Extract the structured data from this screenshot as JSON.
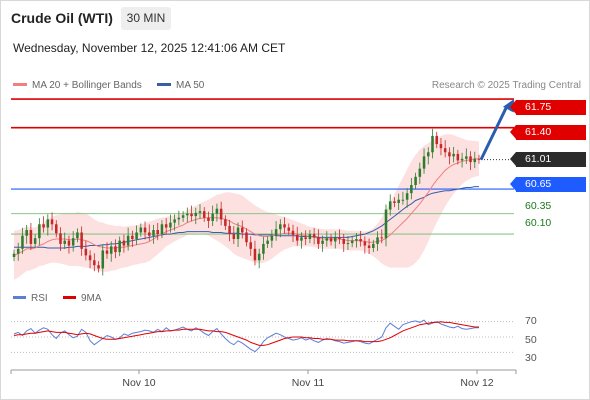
{
  "header": {
    "title": "Crude Oil (WTI)",
    "timeframe": "30 MIN",
    "datetime": "Wednesday, November 12, 2025 12:41:06 AM CET"
  },
  "legend": {
    "ma20": "MA 20 + Bollinger Bands",
    "ma50": "MA 50",
    "credit": "Research © 2025 Trading Central"
  },
  "colors": {
    "resistance": "#e10000",
    "pivot": "#1f5cff",
    "support": "#8bc48b",
    "ma20": "#f08080",
    "ma50": "#3a5da8",
    "band": "#fde0e0",
    "up_candle": "#2e7d2e",
    "down_candle": "#c62828",
    "rsi": "#5b7fd6",
    "rsi_ma": "#e10000"
  },
  "chart_data": [
    {
      "type": "candlestick",
      "title": "Crude Oil (WTI)",
      "timeframe": "30 MIN",
      "x_ticks": [
        "Nov 10",
        "Nov 11",
        "Nov 12"
      ],
      "levels": [
        {
          "value": 61.75,
          "label": "61.75",
          "kind": "resistance"
        },
        {
          "value": 61.4,
          "label": "61.40",
          "kind": "resistance"
        },
        {
          "value": 61.01,
          "label": "61.01",
          "kind": "last"
        },
        {
          "value": 60.65,
          "label": "60.65",
          "kind": "pivot"
        },
        {
          "value": 60.35,
          "label": "60.35",
          "kind": "support"
        },
        {
          "value": 60.1,
          "label": "60.10",
          "kind": "support"
        }
      ],
      "last_price": 61.01,
      "projection": {
        "from": 61.01,
        "to": 61.75,
        "direction": "up"
      },
      "close": [
        59.86,
        59.92,
        60.08,
        60.15,
        59.98,
        60.05,
        60.22,
        60.18,
        60.28,
        60.22,
        60.11,
        59.98,
        60.02,
        59.96,
        60.05,
        60.12,
        59.92,
        59.84,
        59.78,
        59.72,
        59.68,
        59.9,
        59.86,
        59.95,
        59.88,
        60.02,
        59.96,
        60.08,
        60.04,
        60.12,
        60.18,
        60.12,
        60.08,
        60.15,
        60.1,
        60.22,
        60.18,
        60.24,
        60.28,
        60.3,
        60.33,
        60.35,
        60.32,
        60.36,
        60.38,
        60.3,
        60.26,
        60.35,
        60.41,
        60.28,
        60.2,
        60.1,
        60.04,
        60.18,
        60.12,
        60.0,
        59.92,
        59.78,
        59.86,
        59.98,
        60.02,
        60.08,
        60.16,
        60.22,
        60.18,
        60.14,
        60.09,
        60.02,
        60.06,
        60.04,
        60.1,
        60.06,
        59.98,
        60.02,
        60.05,
        60.01,
        60.06,
        60.04,
        59.98,
        59.99,
        60.02,
        60.04,
        60.01,
        59.96,
        59.93,
        59.98,
        60.06,
        60.05,
        60.4,
        60.5,
        60.48,
        60.52,
        60.52,
        60.6,
        60.7,
        60.8,
        60.9,
        61.05,
        61.1,
        61.3,
        61.2,
        61.15,
        61.1,
        61.05,
        61.08,
        61.0,
        61.02,
        61.05,
        60.98,
        61.02,
        61.01
      ],
      "ma20": [
        59.84,
        59.86,
        59.89,
        59.92,
        59.92,
        59.93,
        59.96,
        59.98,
        60.01,
        60.03,
        60.04,
        60.04,
        60.04,
        60.03,
        60.03,
        60.04,
        60.03,
        60.02,
        60.0,
        59.97,
        59.95,
        59.94,
        59.93,
        59.93,
        59.93,
        59.94,
        59.94,
        59.95,
        59.96,
        59.97,
        59.98,
        59.99,
        60.01,
        60.04,
        60.07,
        60.1,
        60.13,
        60.15,
        60.17,
        60.19,
        60.21,
        60.24,
        60.26,
        60.28,
        60.29,
        60.3,
        60.3,
        60.3,
        60.3,
        60.29,
        60.28,
        60.26,
        60.23,
        60.21,
        60.19,
        60.16,
        60.13,
        60.1,
        60.08,
        60.07,
        60.07,
        60.08,
        60.09,
        60.1,
        60.11,
        60.11,
        60.11,
        60.1,
        60.09,
        60.08,
        60.07,
        60.06,
        60.05,
        60.04,
        60.04,
        60.04,
        60.04,
        60.04,
        60.03,
        60.02,
        60.02,
        60.02,
        60.02,
        60.01,
        60.0,
        60.0,
        60.01,
        60.02,
        60.05,
        60.09,
        60.14,
        60.19,
        60.24,
        60.29,
        60.35,
        60.41,
        60.47,
        60.54,
        60.61,
        60.69,
        60.76,
        60.82,
        60.88,
        60.92,
        60.95,
        60.97,
        60.99,
        61.0,
        61.01,
        61.02,
        61.02
      ],
      "ma50": [
        59.94,
        59.94,
        59.94,
        59.94,
        59.94,
        59.94,
        59.94,
        59.94,
        59.93,
        59.93,
        59.93,
        59.93,
        59.93,
        59.94,
        59.94,
        59.95,
        59.95,
        59.95,
        59.96,
        59.96,
        59.96,
        59.97,
        59.97,
        59.98,
        59.98,
        59.99,
        60.0,
        60.01,
        60.02,
        60.03,
        60.04,
        60.05,
        60.06,
        60.07,
        60.08,
        60.09,
        60.1,
        60.1,
        60.11,
        60.12,
        60.12,
        60.13,
        60.13,
        60.13,
        60.13,
        60.13,
        60.13,
        60.12,
        60.12,
        60.12,
        60.11,
        60.11,
        60.11,
        60.11,
        60.1,
        60.1,
        60.1,
        60.09,
        60.09,
        60.09,
        60.09,
        60.09,
        60.08,
        60.08,
        60.08,
        60.08,
        60.08,
        60.08,
        60.07,
        60.07,
        60.07,
        60.07,
        60.06,
        60.06,
        60.06,
        60.06,
        60.06,
        60.06,
        60.06,
        60.06,
        60.07,
        60.08,
        60.09,
        60.1,
        60.12,
        60.14,
        60.17,
        60.2,
        60.24,
        60.28,
        60.32,
        60.36,
        60.4,
        60.44,
        60.47,
        60.51,
        60.53,
        60.55,
        60.58,
        60.6,
        60.61,
        60.62,
        60.63,
        60.63,
        60.64,
        60.65,
        60.66,
        60.67,
        60.67,
        60.68,
        60.68
      ],
      "band_width": [
        0.3,
        0.29,
        0.28,
        0.27,
        0.26,
        0.25,
        0.25,
        0.26,
        0.27,
        0.28,
        0.29,
        0.3,
        0.31,
        0.32,
        0.32,
        0.33,
        0.33,
        0.33,
        0.32,
        0.31,
        0.3,
        0.3,
        0.29,
        0.28,
        0.27,
        0.26,
        0.25,
        0.25,
        0.24,
        0.24,
        0.24,
        0.24,
        0.24,
        0.23,
        0.22,
        0.2,
        0.18,
        0.17,
        0.16,
        0.15,
        0.15,
        0.15,
        0.16,
        0.17,
        0.18,
        0.2,
        0.22,
        0.25,
        0.28,
        0.3,
        0.33,
        0.35,
        0.37,
        0.38,
        0.38,
        0.37,
        0.36,
        0.35,
        0.34,
        0.32,
        0.3,
        0.28,
        0.25,
        0.22,
        0.2,
        0.18,
        0.16,
        0.15,
        0.14,
        0.13,
        0.12,
        0.12,
        0.12,
        0.12,
        0.12,
        0.12,
        0.12,
        0.12,
        0.12,
        0.12,
        0.12,
        0.12,
        0.12,
        0.12,
        0.14,
        0.17,
        0.22,
        0.28,
        0.34,
        0.4,
        0.45,
        0.5,
        0.55,
        0.6,
        0.64,
        0.66,
        0.66,
        0.64,
        0.6,
        0.56,
        0.52,
        0.48,
        0.44,
        0.4,
        0.36,
        0.32,
        0.28,
        0.25,
        0.23,
        0.22,
        0.21
      ],
      "ylim": [
        59.6,
        61.8
      ]
    },
    {
      "type": "line",
      "title": "RSI",
      "legend": [
        "RSI",
        "9MA"
      ],
      "ylim": [
        20,
        80
      ],
      "y_ticks": [
        70,
        50,
        30
      ],
      "series": [
        {
          "name": "RSI",
          "values": [
            54,
            56,
            52,
            58,
            61,
            55,
            59,
            62,
            60,
            53,
            48,
            55,
            58,
            53,
            49,
            51,
            60,
            56,
            45,
            40,
            44,
            48,
            52,
            50,
            47,
            49,
            54,
            52,
            55,
            56,
            57,
            59,
            58,
            56,
            60,
            57,
            62,
            58,
            59,
            61,
            63,
            60,
            58,
            62,
            59,
            55,
            52,
            57,
            61,
            54,
            48,
            43,
            40,
            45,
            42,
            38,
            34,
            31,
            36,
            44,
            49,
            52,
            55,
            53,
            50,
            48,
            46,
            47,
            49,
            46,
            48,
            45,
            43,
            46,
            48,
            47,
            45,
            44,
            42,
            43,
            44,
            45,
            44,
            42,
            41,
            44,
            47,
            50,
            62,
            68,
            64,
            60,
            66,
            68,
            70,
            71,
            69,
            72,
            66,
            68,
            70,
            67,
            65,
            63,
            62,
            64,
            61,
            60,
            61,
            62,
            62
          ]
        },
        {
          "name": "9MA",
          "values": [
            52,
            53,
            53,
            54,
            55,
            55,
            56,
            57,
            58,
            57,
            56,
            56,
            56,
            55,
            54,
            53,
            54,
            55,
            54,
            52,
            50,
            48,
            47,
            47,
            47,
            48,
            49,
            50,
            51,
            52,
            53,
            54,
            55,
            56,
            57,
            57,
            58,
            58,
            59,
            59,
            60,
            60,
            60,
            60,
            60,
            59,
            58,
            58,
            57,
            57,
            56,
            54,
            52,
            50,
            48,
            46,
            43,
            41,
            39,
            39,
            40,
            42,
            44,
            46,
            48,
            49,
            50,
            50,
            50,
            49,
            49,
            48,
            48,
            47,
            47,
            47,
            46,
            46,
            46,
            45,
            45,
            45,
            45,
            44,
            44,
            44,
            44,
            45,
            47,
            49,
            52,
            55,
            58,
            60,
            62,
            64,
            66,
            67,
            68,
            69,
            69,
            70,
            69,
            69,
            68,
            67,
            66,
            65,
            64,
            63,
            63
          ]
        }
      ]
    }
  ]
}
